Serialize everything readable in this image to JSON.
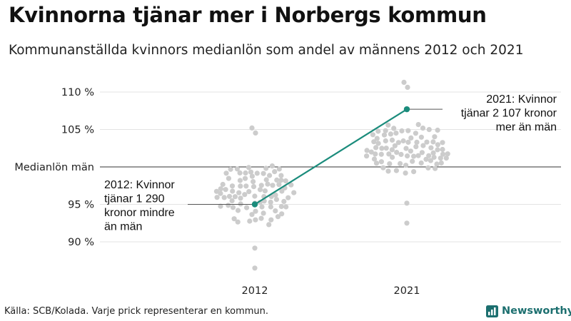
{
  "title": "Kvinnorna tjänar mer i Norbergs kommun",
  "subtitle": "Kommunanställda kvinnors medianlön som andel av männens 2012 och 2021",
  "source": "Källa: SCB/Kolada. Varje prick representerar en kommun.",
  "brand": "Newsworthy",
  "colors": {
    "dots": "#cccccc",
    "highlight": "#1b8c7c",
    "reference_line": "#333333",
    "grid": "#e3e3e3",
    "brand": "#1c6f6f"
  },
  "chart_data": {
    "type": "scatter",
    "subtype": "beeswarm",
    "categories": [
      "2012",
      "2021"
    ],
    "ylim": [
      86,
      112
    ],
    "y_ticks": [
      {
        "value": 90,
        "label": "90 %"
      },
      {
        "value": 95,
        "label": "95 %"
      },
      {
        "value": 100,
        "label": "Medianlön män"
      },
      {
        "value": 105,
        "label": "105 %"
      },
      {
        "value": 110,
        "label": "110 %"
      }
    ],
    "reference_value": 100,
    "highlight": {
      "values": [
        95.0,
        107.7
      ],
      "annotations": [
        {
          "year": "2012",
          "lines": [
            "2012: Kvinnor",
            "tjänar 1 290",
            "kronor mindre",
            "än män"
          ],
          "side": "left"
        },
        {
          "year": "2021",
          "lines": [
            "2021: Kvinnor",
            "tjänar 2 107 kronor",
            "mer än män"
          ],
          "side": "right"
        }
      ]
    },
    "distributions": [
      {
        "year": "2012",
        "min": 86.5,
        "max": 105.2,
        "median": 96.0,
        "center_value": 96.5
      },
      {
        "year": "2021",
        "min": 92.5,
        "max": 111.3,
        "median": 102.5,
        "center_value": 102.3
      }
    ]
  }
}
